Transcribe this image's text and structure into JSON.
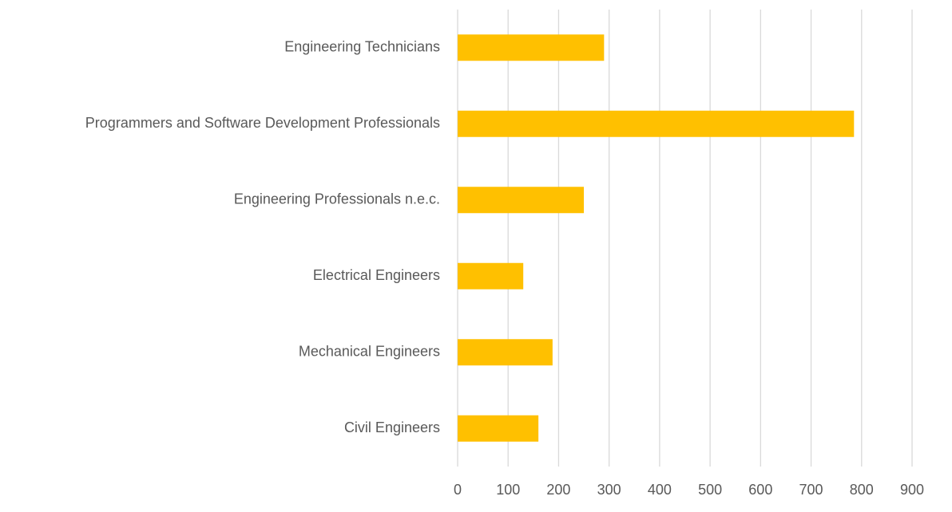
{
  "chart_data": {
    "type": "bar",
    "orientation": "horizontal",
    "categories": [
      "Engineering Technicians",
      "Programmers and Software Development Professionals",
      "Engineering Professionals n.e.c.",
      "Electrical Engineers",
      "Mechanical Engineers",
      "Civil Engineers"
    ],
    "values": [
      290,
      785,
      250,
      130,
      188,
      160
    ],
    "color": "#ffc000",
    "xlim": [
      0,
      900
    ],
    "xticks": [
      0,
      100,
      200,
      300,
      400,
      500,
      600,
      700,
      800,
      900
    ],
    "grid": true
  }
}
